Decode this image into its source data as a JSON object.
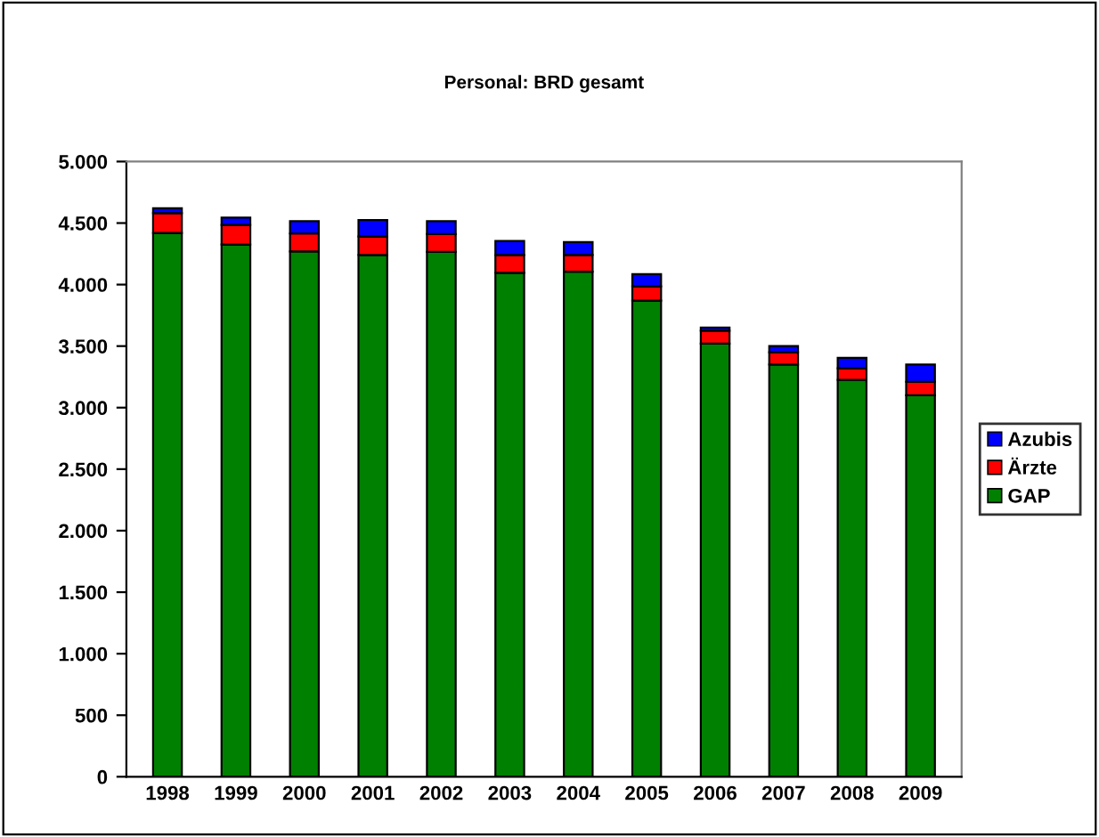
{
  "chart_data": {
    "type": "bar",
    "title": "Personal: BRD gesamt",
    "stacked": true,
    "legend": "right",
    "grid": false,
    "categories": [
      "1998",
      "1999",
      "2000",
      "2001",
      "2002",
      "2003",
      "2004",
      "2005",
      "2006",
      "2007",
      "2008",
      "2009"
    ],
    "series": [
      {
        "name": "GAP",
        "color": "#008000",
        "values": [
          4420,
          4325,
          4270,
          4240,
          4265,
          4095,
          4105,
          3870,
          3520,
          3350,
          3225,
          3100
        ]
      },
      {
        "name": "Ärzte",
        "color": "#ff0000",
        "values": [
          160,
          160,
          145,
          150,
          145,
          145,
          135,
          115,
          105,
          100,
          95,
          110
        ]
      },
      {
        "name": "Azubis",
        "color": "#0000ff",
        "values": [
          40,
          60,
          100,
          135,
          105,
          115,
          105,
          100,
          25,
          50,
          85,
          140
        ]
      }
    ],
    "ylim": [
      0,
      5000
    ],
    "yticks": [
      0,
      500,
      {
        "value": 1000,
        "label": "1.000"
      },
      {
        "value": 1500,
        "label": "1.500"
      },
      {
        "value": 2000,
        "label": "2.000"
      },
      {
        "value": 2500,
        "label": "2.500"
      },
      {
        "value": 3000,
        "label": "3.000"
      },
      {
        "value": 3500,
        "label": "3.500"
      },
      {
        "value": 4000,
        "label": "4.000"
      },
      {
        "value": 4500,
        "label": "4.500"
      },
      {
        "value": 5000,
        "label": "5.000"
      }
    ]
  }
}
